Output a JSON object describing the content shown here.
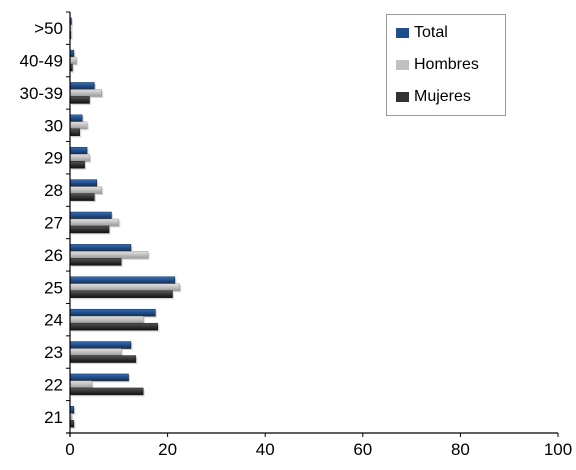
{
  "chart_data": {
    "type": "bar",
    "orientation": "horizontal",
    "categories": [
      "21",
      "22",
      "23",
      "24",
      "25",
      "26",
      "27",
      "28",
      "29",
      "30",
      "30-39",
      "40-49",
      ">50"
    ],
    "series": [
      {
        "name": "Total",
        "color": "#1f4e8c",
        "values": [
          0.8,
          12,
          12.5,
          17.5,
          21.5,
          12.5,
          8.5,
          5.5,
          3.5,
          2.5,
          5,
          0.8,
          0.3
        ]
      },
      {
        "name": "Hombres",
        "color": "#c0c0c0",
        "values": [
          0.3,
          4.5,
          10.5,
          15,
          22.5,
          16,
          10,
          6.5,
          4,
          3.5,
          6.5,
          1.3,
          0.2
        ]
      },
      {
        "name": "Mujeres",
        "color": "#333333",
        "values": [
          0.8,
          15,
          13.5,
          18,
          21,
          10.5,
          8,
          5,
          3,
          2,
          4,
          0.5,
          0.2
        ]
      }
    ],
    "xlim": [
      0,
      100
    ],
    "xticks": [
      "0",
      "20",
      "40",
      "60",
      "80",
      "100"
    ],
    "xlabel": "",
    "ylabel": "",
    "title": "",
    "legend_position": "top-right",
    "grid": false
  }
}
